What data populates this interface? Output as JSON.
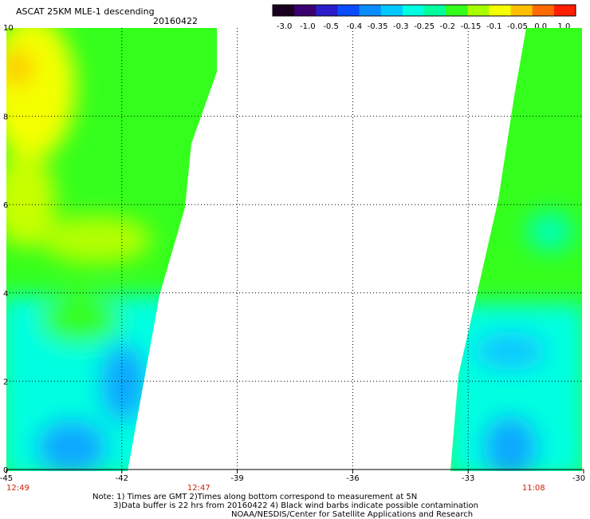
{
  "header": {
    "title": "ASCAT 25KM MLE-1 descending",
    "date": "20160422"
  },
  "colorbar": {
    "labels": [
      "-3.0",
      "-1.0",
      "-0.5",
      "-0.4",
      "-0.35",
      "-0.3",
      "-0.25",
      "-0.2",
      "-0.15",
      "-0.1",
      "-0.05",
      "0.0",
      "1.0"
    ],
    "colors": [
      "#1a0020",
      "#3a0070",
      "#2a1cc8",
      "#0a4cff",
      "#0a8cff",
      "#00c8ff",
      "#00ffe0",
      "#00ff9c",
      "#34ff1c",
      "#a8ff00",
      "#f4ff00",
      "#ffbe00",
      "#ff6a00",
      "#ff1e00"
    ]
  },
  "map": {
    "x_ticks": [
      {
        "label": "-45",
        "value": -45
      },
      {
        "label": "-42",
        "value": -42
      },
      {
        "label": "-39",
        "value": -39
      },
      {
        "label": "-36",
        "value": -36
      },
      {
        "label": "-33",
        "value": -33
      },
      {
        "label": "-30",
        "value": -30
      }
    ],
    "y_ticks": [
      {
        "label": "0",
        "value": 0
      },
      {
        "label": "2",
        "value": 2
      },
      {
        "label": "4",
        "value": 4
      },
      {
        "label": "6",
        "value": 6
      },
      {
        "label": "8",
        "value": 8
      },
      {
        "label": "10",
        "value": 10
      }
    ],
    "times": [
      {
        "label": "12:49",
        "lon": -45
      },
      {
        "label": "12:47",
        "lon": -40
      },
      {
        "label": "11:08",
        "lon": -31.3
      }
    ],
    "colors": {
      "high": "#f4ff00",
      "mid": "#34ff1c",
      "low": "#00ffe0",
      "lowest": "#0a8cff"
    }
  },
  "footer": {
    "line1": "Note: 1) Times are GMT 2)Times along bottom correspond to measurement at 5N",
    "line2": "3)Data buffer is 22 hrs from 20160422 4) Black wind barbs indicate possible contamination",
    "line3": "NOAA/NESDIS/Center for Satellite Applications and Research"
  }
}
